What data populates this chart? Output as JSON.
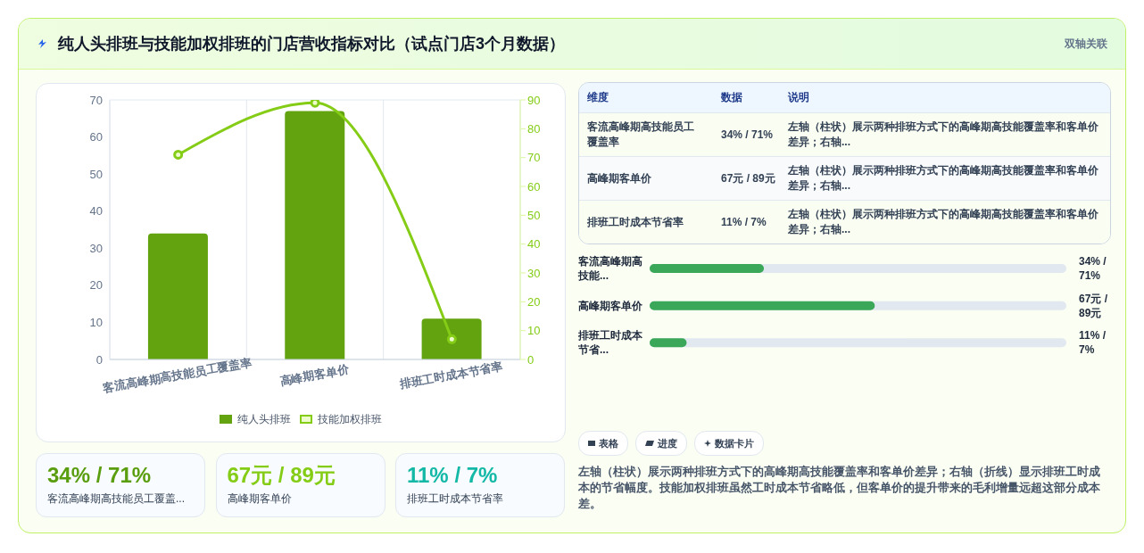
{
  "chart_data": [
    {
      "type": "other",
      "title": "纯人头排班与技能加权排班的门店营收指标对比（试点门店3个月数据）",
      "subtitle": "双轴关联"
    },
    {
      "type": "bar",
      "categories": [
        "客流高峰期高技能员工覆盖率",
        "高峰期客单价",
        "排班工时成本节省率"
      ],
      "series": [
        {
          "name": "纯人头排班",
          "color": "#62a30f",
          "values": [
            34,
            67,
            11
          ]
        },
        {
          "name": "技能加权排班",
          "type": "line",
          "axis": "y2",
          "color": "#84cc16",
          "values": [
            71,
            89,
            7
          ]
        }
      ],
      "ylim": [
        0,
        70
      ],
      "yticks": [
        0,
        10,
        20,
        30,
        40,
        50,
        60,
        70
      ],
      "y2lim": [
        0,
        90
      ],
      "y2ticks": [
        0,
        10,
        20,
        30,
        40,
        50,
        60,
        70,
        80,
        90
      ],
      "grid": true,
      "legend": "bottom",
      "marker": "circle"
    },
    {
      "type": "other",
      "annotations": [
        "维度",
        "数据",
        "说明",
        "客流高峰期高技能员工覆盖率",
        "34% / 71%",
        "左轴（柱状）展示两种排班方式下的高峰期高技能覆盖率和客单价差异；右轴...",
        "高峰期客单价",
        "67元 / 89元",
        "左轴（柱状）展示两种排班方式下的高峰期高技能覆盖率和客单价差异；右轴...",
        "排班工时成本节省率",
        "11% / 7%",
        "左轴（柱状）展示两种排班方式下的高峰期高技能覆盖率和客单价差异；右轴..."
      ]
    },
    {
      "type": "bar",
      "orientation": "horizontal",
      "categories": [
        "客流高峰期高技能...",
        "高峰期客单价",
        "排班工时成本节省..."
      ],
      "values": [
        34,
        67,
        11
      ],
      "value_labels": [
        "34% / 71%",
        "67元 / 89元",
        "11% / 7%"
      ],
      "xlim": [
        0,
        124
      ],
      "color": "#3aa858"
    },
    {
      "type": "other",
      "annotations": [
        "34% / 71%",
        "客流高峰期高技能员工覆盖...",
        "67元 / 89元",
        "高峰期客单价",
        "11% / 7%",
        "排班工时成本节省率",
        "表格",
        "进度",
        "数据卡片",
        "左轴（柱状）展示两种排班方式下的高峰期高技能覆盖率和客单价差异；右轴（折线）显示排班工时成本的节省幅度。技能加权排班虽然工时成本节省略低，但客单价的提升带来的毛利增量远超这部分成本差。"
      ]
    }
  ]
}
